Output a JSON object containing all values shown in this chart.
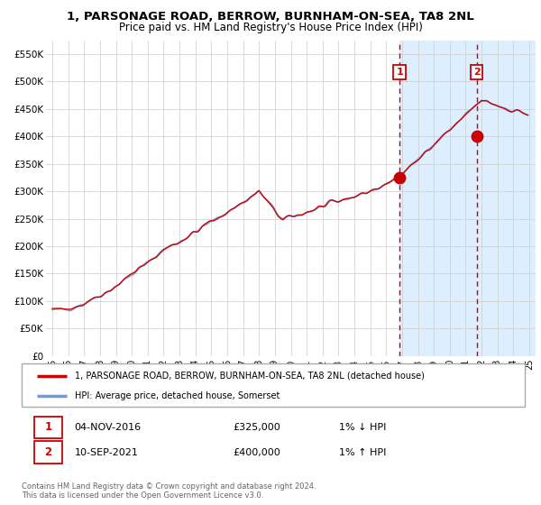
{
  "title": "1, PARSONAGE ROAD, BERROW, BURNHAM-ON-SEA, TA8 2NL",
  "subtitle": "Price paid vs. HM Land Registry's House Price Index (HPI)",
  "hpi_color": "#7799cc",
  "price_color": "#cc0000",
  "plot_bg": "#ffffff",
  "shade_color": "#ddeeff",
  "grid_color": "#cccccc",
  "sale1_price": 325000,
  "sale2_price": 400000,
  "legend_line1": "1, PARSONAGE ROAD, BERROW, BURNHAM-ON-SEA, TA8 2NL (detached house)",
  "legend_line2": "HPI: Average price, detached house, Somerset",
  "table_row1": [
    "1",
    "04-NOV-2016",
    "£325,000",
    "1% ↓ HPI"
  ],
  "table_row2": [
    "2",
    "10-SEP-2021",
    "£400,000",
    "1% ↑ HPI"
  ],
  "footnote": "Contains HM Land Registry data © Crown copyright and database right 2024.\nThis data is licensed under the Open Government Licence v3.0.",
  "ylim": [
    0,
    575000
  ],
  "yticks": [
    0,
    50000,
    100000,
    150000,
    200000,
    250000,
    300000,
    350000,
    400000,
    450000,
    500000,
    550000
  ],
  "ytick_labels": [
    "£0",
    "£50K",
    "£100K",
    "£150K",
    "£200K",
    "£250K",
    "£300K",
    "£350K",
    "£400K",
    "£450K",
    "£500K",
    "£550K"
  ],
  "sale1_year": 2016.84,
  "sale2_year": 2021.7,
  "xlim_left": 1994.6,
  "xlim_right": 2025.4
}
